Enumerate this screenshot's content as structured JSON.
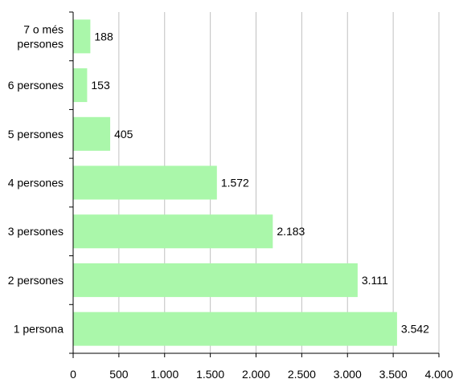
{
  "chart_data": {
    "type": "bar",
    "orientation": "horizontal",
    "title": "",
    "xlabel": "",
    "ylabel": "",
    "categories": [
      "1 persona",
      "2 persones",
      "3 persones",
      "4 persones",
      "5 persones",
      "6 persones",
      "7 o més persones"
    ],
    "category_label_lines": [
      [
        "1 persona"
      ],
      [
        "2 persones"
      ],
      [
        "3 persones"
      ],
      [
        "4 persones"
      ],
      [
        "5 persones"
      ],
      [
        "6 persones"
      ],
      [
        "7 o més",
        "persones"
      ]
    ],
    "values": [
      3542,
      3111,
      2183,
      1572,
      405,
      153,
      188
    ],
    "data_labels": [
      "3.542",
      "3.111",
      "2.183",
      "1.572",
      "405",
      "153",
      "188"
    ],
    "xlim": [
      0,
      4000
    ],
    "xticks": [
      0,
      500,
      1000,
      1500,
      2000,
      2500,
      3000,
      3500,
      4000
    ],
    "xtick_labels": [
      "0",
      "500",
      "1.000",
      "1.500",
      "2.000",
      "2.500",
      "3.000",
      "3.500",
      "4.000"
    ],
    "grid": "vertical",
    "legend": "none",
    "colors": {
      "bar": "#aaf7aa",
      "gridline": "#c0c0c0",
      "axis": "#000000"
    }
  }
}
